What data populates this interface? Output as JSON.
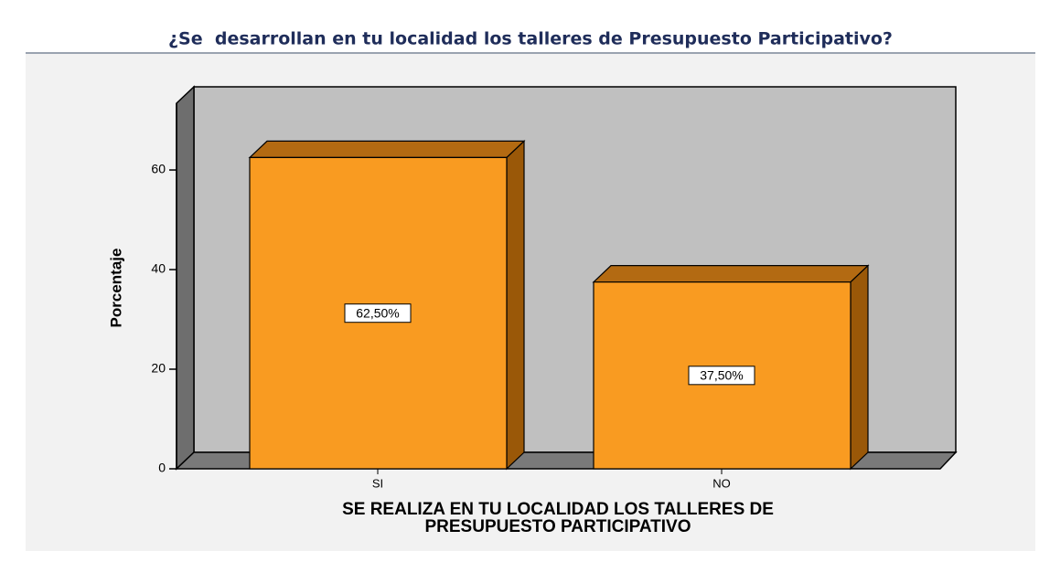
{
  "chart_data": {
    "type": "bar3d",
    "title": "¿Se  desarrollan en tu localidad los talleres de Presupuesto Participativo?",
    "y_label": "Porcentaje",
    "x_label": [
      "SE REALIZA EN TU LOCALIDAD LOS TALLERES DE",
      "PRESUPUESTO PARTICIPATIVO"
    ],
    "categories": [
      "SI",
      "NO"
    ],
    "values": [
      62.5,
      37.5
    ],
    "value_labels": [
      "62,50%",
      "37,50%"
    ],
    "color": "#f99b21",
    "ylim": [
      0,
      73.4
    ],
    "yticks": [
      0,
      20,
      40,
      60
    ]
  }
}
